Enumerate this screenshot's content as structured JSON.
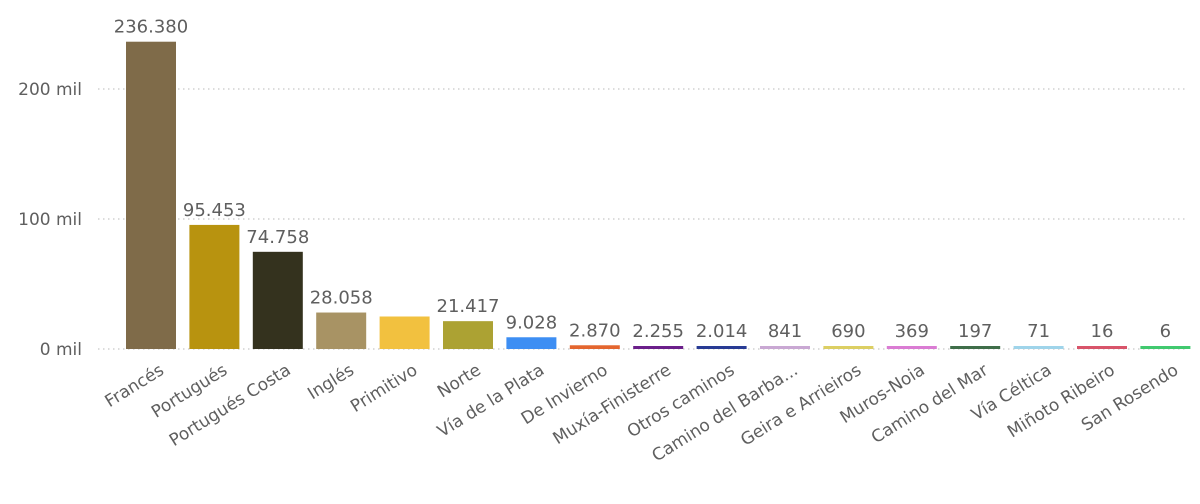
{
  "chart_data": {
    "type": "bar",
    "title": "",
    "xlabel": "",
    "ylabel": "",
    "ylim": [
      0,
      260000
    ],
    "yticks": [
      {
        "value": 0,
        "label": "0 mil"
      },
      {
        "value": 100000,
        "label": "100 mil"
      },
      {
        "value": 200000,
        "label": "200 mil"
      }
    ],
    "grid": true,
    "categories": [
      "Francés",
      "Portugués",
      "Portugués Costa",
      "Inglés",
      "Primitivo",
      "Norte",
      "Vía de la Plata",
      "De Invierno",
      "Muxía-Finisterre",
      "Otros caminos",
      "Camino del Barba...",
      "Geira e Arrieiros",
      "Muros-Noia",
      "Camino del Mar",
      "Vía Céltica",
      "Miñoto Ribeiro",
      "San Rosendo"
    ],
    "values": [
      236380,
      95453,
      74758,
      28058,
      25000,
      21417,
      9028,
      2870,
      2255,
      2014,
      841,
      690,
      369,
      197,
      71,
      16,
      6
    ],
    "data_labels": [
      "236.380",
      "95.453",
      "74.758",
      "28.058",
      "",
      "21.417",
      "9.028",
      "2.870",
      "2.255",
      "2.014",
      "841",
      "690",
      "369",
      "197",
      "71",
      "16",
      "6"
    ],
    "colors": [
      "#7f6b49",
      "#b8930f",
      "#34321e",
      "#a89364",
      "#f2c13f",
      "#aca233",
      "#3d8ef3",
      "#e4662f",
      "#6b1f8a",
      "#283b94",
      "#c9a8d3",
      "#dccf63",
      "#da7cd3",
      "#3f6e49",
      "#9fd4ea",
      "#d8546a",
      "#41c96f"
    ]
  }
}
